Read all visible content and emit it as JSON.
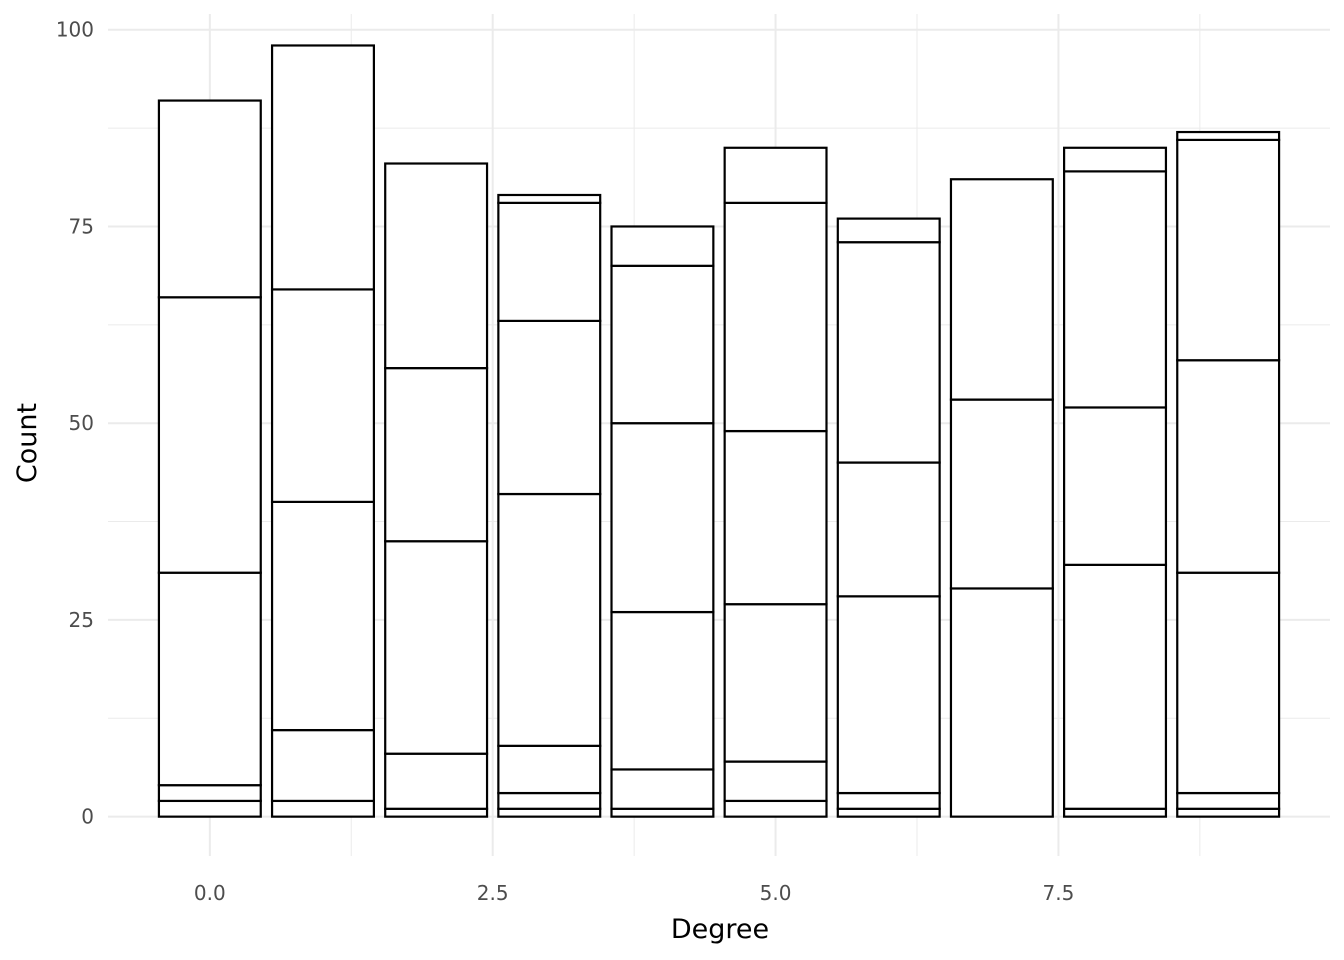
{
  "chart_data": {
    "type": "bar",
    "stacked": true,
    "xlabel": "Degree",
    "ylabel": "Count",
    "xlim": [
      -0.9,
      9.9
    ],
    "ylim": [
      -5,
      102
    ],
    "x_ticks": [
      0,
      2.5,
      5,
      7.5
    ],
    "x_tick_labels": [
      "0.0",
      "2.5",
      "5.0",
      "7.5"
    ],
    "y_ticks": [
      0,
      25,
      50,
      75,
      100
    ],
    "y_tick_labels": [
      "0",
      "25",
      "50",
      "75",
      "100"
    ],
    "grid": true,
    "legend": "none",
    "bar_fill": "#ffffff",
    "bar_outline": "#000000",
    "grid_color": "#ebebeb",
    "bars": [
      {
        "x": 0,
        "boundaries": [
          0,
          2,
          4,
          31,
          66,
          91
        ]
      },
      {
        "x": 1,
        "boundaries": [
          0,
          2,
          11,
          40,
          67,
          98
        ]
      },
      {
        "x": 2,
        "boundaries": [
          0,
          1,
          8,
          35,
          57,
          83
        ]
      },
      {
        "x": 3,
        "boundaries": [
          0,
          1,
          3,
          9,
          41,
          63,
          78,
          79
        ]
      },
      {
        "x": 4,
        "boundaries": [
          0,
          1,
          6,
          26,
          50,
          70,
          75
        ]
      },
      {
        "x": 5,
        "boundaries": [
          0,
          2,
          7,
          27,
          49,
          78,
          85
        ]
      },
      {
        "x": 6,
        "boundaries": [
          0,
          1,
          3,
          28,
          45,
          73,
          76
        ]
      },
      {
        "x": 7,
        "boundaries": [
          0,
          29,
          53,
          81
        ]
      },
      {
        "x": 8,
        "boundaries": [
          0,
          1,
          32,
          52,
          82,
          85
        ]
      },
      {
        "x": 9,
        "boundaries": [
          0,
          1,
          3,
          31,
          58,
          86,
          87
        ]
      }
    ]
  }
}
